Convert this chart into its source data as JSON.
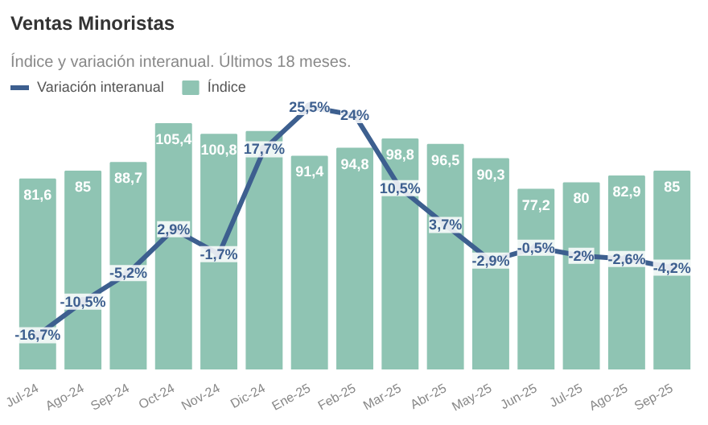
{
  "chart_data": {
    "type": "bar",
    "title": "Ventas Minoristas",
    "subtitle": "Índice y variación interanual. Últimos 18 meses.",
    "categories": [
      "Jul-24",
      "Ago-24",
      "Sep-24",
      "Oct-24",
      "Nov-24",
      "Dic-24",
      "Ene-25",
      "Feb-25",
      "Mar-25",
      "Abr-25",
      "May-25",
      "Jun-25",
      "Jul-25",
      "Ago-25",
      "Sep-25"
    ],
    "series": [
      {
        "name": "Índice",
        "color": "#8fc4b3",
        "values": [
          81.6,
          85,
          88.7,
          105.4,
          100.8,
          102,
          91.4,
          94.8,
          98.8,
          96.5,
          90.3,
          77.2,
          80,
          82.9,
          85
        ],
        "value_labels": [
          "81,6",
          "85",
          "88,7",
          "105,4",
          "100,8",
          null,
          "91,4",
          "94,8",
          "98,8",
          "96,5",
          "90,3",
          "77,2",
          "80",
          "82,9",
          "85"
        ]
      },
      {
        "name": "Variación interanual",
        "type": "line",
        "axis": "y2",
        "color": "#3d5f8f",
        "values": [
          -16.7,
          -10.5,
          -5.2,
          2.9,
          -1.7,
          17.7,
          25.5,
          24,
          10.5,
          3.7,
          -2.9,
          -0.5,
          -2,
          -2.6,
          -4.2
        ],
        "value_labels": [
          "-16,7%",
          "-10,5%",
          "-5,2%",
          "2,9%",
          "-1,7%",
          "17,7%",
          "25,5%",
          "24%",
          "10,5%",
          "3,7%",
          "-2,9%",
          "-0,5%",
          "-2%",
          "-2,6%",
          "-4,2%"
        ]
      }
    ],
    "legend": "top left",
    "marker": "circle",
    "line_style": "solid"
  }
}
